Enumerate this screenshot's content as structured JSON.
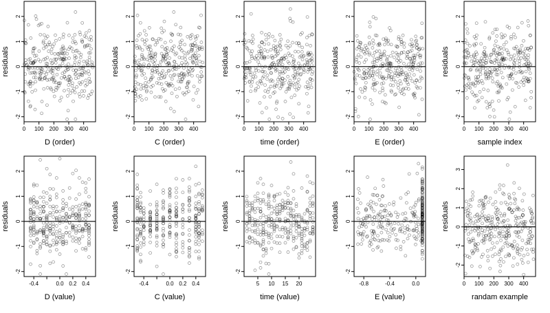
{
  "figure": {
    "layout": "2 rows x 5 columns of residual scatter plots"
  },
  "chart_data": [
    {
      "type": "scatter",
      "title": "",
      "xlabel": "D (order)",
      "ylabel": "residuals",
      "xlim": [
        0,
        480
      ],
      "ylim": [
        -2.2,
        2.6
      ],
      "xticks": [
        0,
        100,
        200,
        300,
        400
      ],
      "xtick_labels": [
        "0",
        "100",
        "200",
        "300",
        "400"
      ],
      "yticks": [
        -2,
        -1,
        0,
        1,
        2
      ],
      "ytick_labels": [
        "-2",
        "-1",
        "0",
        "1",
        "2"
      ],
      "hline": 0,
      "pattern": "order",
      "n": 320,
      "seed": 11
    },
    {
      "type": "scatter",
      "title": "",
      "xlabel": "C (order)",
      "ylabel": "residuals",
      "xlim": [
        0,
        480
      ],
      "ylim": [
        -2.2,
        2.6
      ],
      "xticks": [
        0,
        100,
        200,
        300,
        400
      ],
      "xtick_labels": [
        "0",
        "100",
        "200",
        "300",
        "400"
      ],
      "yticks": [
        -2,
        -1,
        0,
        1,
        2
      ],
      "ytick_labels": [
        "-2",
        "-1",
        "0",
        "1",
        "2"
      ],
      "hline": 0,
      "pattern": "order",
      "n": 320,
      "seed": 23
    },
    {
      "type": "scatter",
      "title": "",
      "xlabel": "time (order)",
      "ylabel": "residuals",
      "xlim": [
        0,
        480
      ],
      "ylim": [
        -2.2,
        2.6
      ],
      "xticks": [
        0,
        100,
        200,
        300,
        400
      ],
      "xtick_labels": [
        "0",
        "100",
        "200",
        "300",
        "400"
      ],
      "yticks": [
        -2,
        -1,
        0,
        1,
        2
      ],
      "ytick_labels": [
        "-2",
        "-1",
        "0",
        "1",
        "2"
      ],
      "hline": 0,
      "pattern": "order",
      "n": 320,
      "seed": 37
    },
    {
      "type": "scatter",
      "title": "",
      "xlabel": "E (order)",
      "ylabel": "residuals",
      "xlim": [
        0,
        480
      ],
      "ylim": [
        -2.2,
        2.6
      ],
      "xticks": [
        0,
        100,
        200,
        300,
        400
      ],
      "xtick_labels": [
        "0",
        "100",
        "200",
        "300",
        "400"
      ],
      "yticks": [
        -2,
        -1,
        0,
        1,
        2
      ],
      "ytick_labels": [
        "-2",
        "-1",
        "0",
        "1",
        "2"
      ],
      "hline": 0,
      "pattern": "order",
      "n": 320,
      "seed": 41
    },
    {
      "type": "scatter",
      "title": "",
      "xlabel": "sample index",
      "ylabel": "residuals",
      "xlim": [
        0,
        480
      ],
      "ylim": [
        -2.2,
        2.6
      ],
      "xticks": [
        0,
        100,
        200,
        300,
        400
      ],
      "xtick_labels": [
        "0",
        "100",
        "200",
        "300",
        "400"
      ],
      "yticks": [
        -2,
        -1,
        0,
        1,
        2
      ],
      "ytick_labels": [
        "-2",
        "-1",
        "0",
        "1",
        "2"
      ],
      "hline": 0,
      "pattern": "order",
      "n": 320,
      "seed": 53
    },
    {
      "type": "scatter",
      "title": "",
      "xlabel": "D (value)",
      "ylabel": "residuals",
      "xlim": [
        -0.55,
        0.55
      ],
      "ylim": [
        -2.2,
        2.6
      ],
      "xticks": [
        -0.4,
        -0.2,
        0.0,
        0.2,
        0.4
      ],
      "xtick_labels": [
        "-0.4",
        "",
        "0.0",
        "0.2",
        "0.4"
      ],
      "yticks": [
        -2,
        -1,
        0,
        1,
        2
      ],
      "ytick_labels": [
        "-2",
        "-1",
        "0",
        "1",
        "2"
      ],
      "hline": 0,
      "pattern": "discrete",
      "levels": [
        -0.45,
        -0.4,
        -0.35,
        -0.3,
        -0.25,
        -0.2,
        -0.15,
        -0.1,
        -0.05,
        0.0,
        0.05,
        0.1,
        0.15,
        0.2,
        0.25,
        0.3,
        0.35,
        0.4,
        0.45
      ],
      "n": 320,
      "seed": 67
    },
    {
      "type": "scatter",
      "title": "",
      "xlabel": "C (value)",
      "ylabel": "residuals",
      "xlim": [
        -0.55,
        0.55
      ],
      "ylim": [
        -2.2,
        2.6
      ],
      "xticks": [
        -0.4,
        -0.2,
        0.0,
        0.2,
        0.4
      ],
      "xtick_labels": [
        "-0.4",
        "",
        "0.0",
        "0.2",
        "0.4"
      ],
      "yticks": [
        -2,
        -1,
        0,
        1,
        2
      ],
      "ytick_labels": [
        "-2",
        "-1",
        "0",
        "1",
        "2"
      ],
      "hline": 0,
      "pattern": "discrete",
      "levels": [
        -0.5,
        -0.45,
        -0.4,
        -0.3,
        -0.2,
        -0.1,
        0.0,
        0.1,
        0.2,
        0.3,
        0.4,
        0.45,
        0.5
      ],
      "n": 320,
      "seed": 71
    },
    {
      "type": "scatter",
      "title": "",
      "xlabel": "time (value)",
      "ylabel": "residuals",
      "xlim": [
        0,
        26
      ],
      "ylim": [
        -2.2,
        2.6
      ],
      "xticks": [
        5,
        10,
        15,
        20
      ],
      "xtick_labels": [
        "5",
        "10",
        "15",
        "20"
      ],
      "yticks": [
        -2,
        -1,
        0,
        1,
        2
      ],
      "ytick_labels": [
        "-2",
        "-1",
        "0",
        "1",
        "2"
      ],
      "hline": 0,
      "pattern": "discrete",
      "levels": [
        1,
        2,
        3,
        4,
        5,
        6,
        7,
        8,
        9,
        10,
        11,
        12,
        13,
        14,
        15,
        16,
        17,
        18,
        19,
        20,
        21,
        22,
        23,
        24,
        25
      ],
      "n": 320,
      "seed": 83
    },
    {
      "type": "scatter",
      "title": "",
      "xlabel": "E (value)",
      "ylabel": "residuals",
      "xlim": [
        -0.95,
        0.15
      ],
      "ylim": [
        -2.2,
        2.6
      ],
      "xticks": [
        -0.8,
        -0.4,
        0.0
      ],
      "xtick_labels": [
        "-0.8",
        "-0.4",
        "0.0"
      ],
      "yticks": [
        -2,
        -1,
        0,
        1,
        2
      ],
      "ytick_labels": [
        "-2",
        "-1",
        "0",
        "1",
        "2"
      ],
      "hline": 0,
      "pattern": "skewed",
      "cluster_x": 0.1,
      "n": 320,
      "seed": 97
    },
    {
      "type": "scatter",
      "title": "",
      "xlabel": "randam example",
      "ylabel": "residuals",
      "xlim": [
        0,
        480
      ],
      "ylim": [
        -2.6,
        3.7
      ],
      "xticks": [
        0,
        100,
        200,
        300,
        400
      ],
      "xtick_labels": [
        "0",
        "100",
        "200",
        "300",
        "400"
      ],
      "yticks": [
        -2,
        -1,
        0,
        1,
        2,
        3
      ],
      "ytick_labels": [
        "-2",
        "-1",
        "0",
        "1",
        "2",
        "3"
      ],
      "hline": 0,
      "pattern": "random",
      "n": 320,
      "seed": 101
    }
  ]
}
